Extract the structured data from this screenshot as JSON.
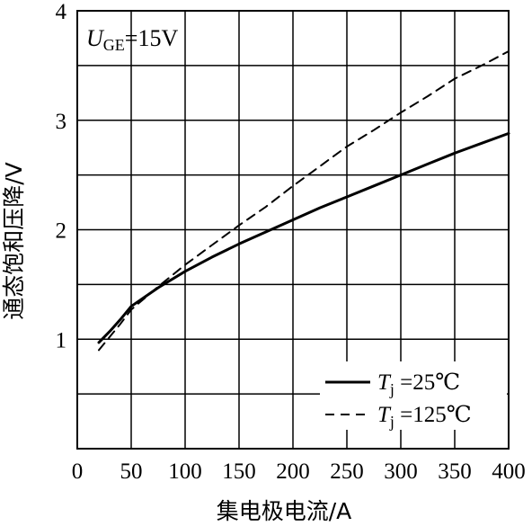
{
  "chart_data": {
    "type": "line",
    "xlabel": "集电极电流/A",
    "ylabel": "通态饱和压降/V",
    "xlim": [
      0,
      400
    ],
    "ylim": [
      0,
      4
    ],
    "x_ticks": [
      0,
      50,
      100,
      150,
      200,
      250,
      300,
      350,
      400
    ],
    "y_ticks": [
      1,
      2,
      3,
      4
    ],
    "grid": true,
    "legend_position": "bottom-right",
    "annotation": {
      "var": "U",
      "sub": "GE",
      "rest": "=15V"
    },
    "series": [
      {
        "name": "T j =25℃",
        "label_var": "T",
        "label_sub": "j",
        "label_rest": " =25℃",
        "style": "solid",
        "x": [
          20,
          30,
          40,
          50,
          75,
          100,
          125,
          150,
          175,
          200,
          225,
          250,
          275,
          300,
          325,
          350,
          375,
          400
        ],
        "y": [
          0.97,
          1.07,
          1.18,
          1.3,
          1.47,
          1.62,
          1.75,
          1.87,
          1.98,
          2.09,
          2.2,
          2.3,
          2.4,
          2.5,
          2.6,
          2.7,
          2.79,
          2.88
        ]
      },
      {
        "name": "T j =125℃",
        "label_var": "T",
        "label_sub": "j",
        "label_rest": " =125℃",
        "style": "dashed",
        "x": [
          20,
          30,
          40,
          50,
          75,
          100,
          125,
          150,
          175,
          200,
          225,
          250,
          275,
          300,
          325,
          350,
          375,
          400
        ],
        "y": [
          0.9,
          1.02,
          1.14,
          1.27,
          1.48,
          1.68,
          1.86,
          2.04,
          2.21,
          2.4,
          2.58,
          2.76,
          2.91,
          3.07,
          3.22,
          3.38,
          3.5,
          3.63
        ]
      }
    ]
  }
}
